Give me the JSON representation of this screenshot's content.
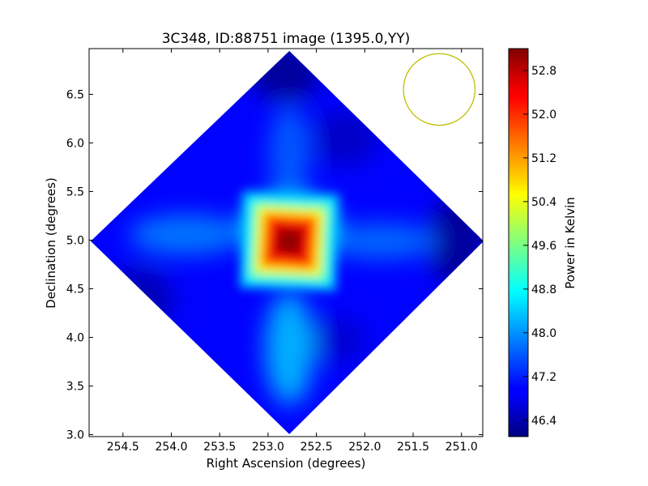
{
  "chart_data": {
    "type": "heatmap",
    "title": "3C348, ID:88751 image (1395.0,YY)",
    "xlabel": "Right Ascension (degrees)",
    "ylabel": "Declination (degrees)",
    "colorbar_label": "Power in Kelvin",
    "xlim": [
      254.85,
      250.78
    ],
    "ylim": [
      2.98,
      6.97
    ],
    "x_ticks": [
      254.5,
      254.0,
      253.5,
      253.0,
      252.5,
      252.0,
      251.5,
      251.0
    ],
    "x_tick_labels": [
      "254.5",
      "254.0",
      "253.5",
      "253.0",
      "252.5",
      "252.0",
      "251.5",
      "251.0"
    ],
    "y_ticks": [
      3.0,
      3.5,
      4.0,
      4.5,
      5.0,
      5.5,
      6.0,
      6.5
    ],
    "y_tick_labels": [
      "3.0",
      "3.5",
      "4.0",
      "4.5",
      "5.0",
      "5.5",
      "6.0",
      "6.5"
    ],
    "colorbar_range": [
      46.1,
      53.2
    ],
    "colorbar_ticks": [
      46.4,
      47.2,
      48.0,
      48.8,
      49.6,
      50.4,
      51.2,
      52.0,
      52.8
    ],
    "colorbar_tick_labels": [
      "46.4",
      "47.2",
      "48.0",
      "48.8",
      "49.6",
      "50.4",
      "51.2",
      "52.0",
      "52.8"
    ],
    "colormap": "jet",
    "source_peak": {
      "ra": 252.78,
      "dec": 4.99,
      "value": 53.0
    },
    "map_center": {
      "ra": 252.78,
      "dec": 4.99
    },
    "background_level": 47.0,
    "beam_circle": {
      "ra": 251.23,
      "dec": 6.55,
      "radius_deg": 0.37,
      "color": "#bfbf00"
    }
  }
}
